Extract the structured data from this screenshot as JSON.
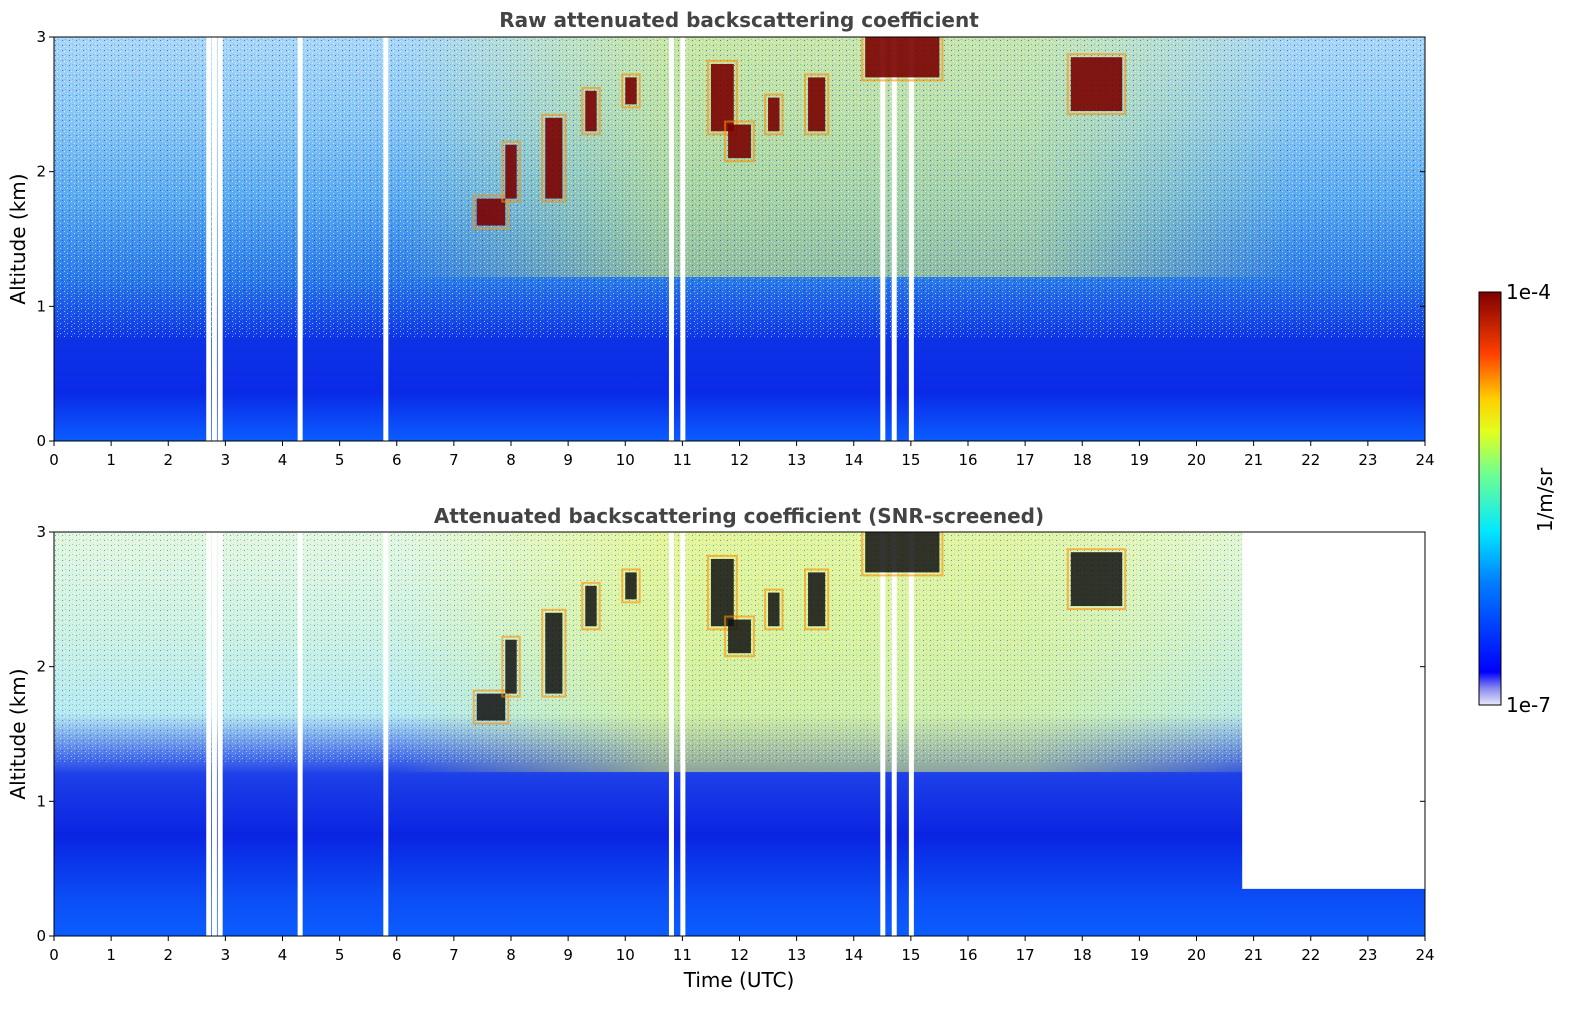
{
  "chart_data": [
    {
      "type": "heatmap",
      "title": "Raw attenuated backscattering coefficient",
      "xlabel": "",
      "ylabel": "Altitude (km)",
      "xlim": [
        0,
        24
      ],
      "ylim": [
        0,
        3
      ],
      "x_ticks": [
        "0",
        "1",
        "2",
        "3",
        "4",
        "5",
        "6",
        "7",
        "8",
        "9",
        "10",
        "11",
        "12",
        "13",
        "14",
        "15",
        "16",
        "17",
        "18",
        "19",
        "20",
        "21",
        "22",
        "23",
        "24"
      ],
      "y_ticks": [
        "0",
        "1",
        "2",
        "3"
      ],
      "cloud_layers": [
        {
          "t0": 7.4,
          "t1": 7.9,
          "z0": 1.6,
          "z1": 1.8
        },
        {
          "t0": 7.9,
          "t1": 8.1,
          "z0": 1.8,
          "z1": 2.2
        },
        {
          "t0": 8.6,
          "t1": 8.9,
          "z0": 1.8,
          "z1": 2.4
        },
        {
          "t0": 9.3,
          "t1": 9.5,
          "z0": 2.3,
          "z1": 2.6
        },
        {
          "t0": 10.0,
          "t1": 10.2,
          "z0": 2.5,
          "z1": 2.7
        },
        {
          "t0": 11.5,
          "t1": 11.9,
          "z0": 2.3,
          "z1": 2.8
        },
        {
          "t0": 11.8,
          "t1": 12.2,
          "z0": 2.1,
          "z1": 2.35
        },
        {
          "t0": 12.5,
          "t1": 12.7,
          "z0": 2.3,
          "z1": 2.55
        },
        {
          "t0": 13.2,
          "t1": 13.5,
          "z0": 2.3,
          "z1": 2.7
        },
        {
          "t0": 14.2,
          "t1": 15.5,
          "z0": 2.7,
          "z1": 3.0
        },
        {
          "t0": 17.8,
          "t1": 18.7,
          "z0": 2.45,
          "z1": 2.85
        }
      ],
      "data_gaps": [
        2.7,
        2.8,
        2.9,
        4.3,
        5.8,
        10.8,
        11.0,
        14.5,
        14.7,
        15.0
      ]
    },
    {
      "type": "heatmap",
      "title": "Attenuated backscattering coefficient (SNR-screened)",
      "xlabel": "Time (UTC)",
      "ylabel": "Altitude (km)",
      "xlim": [
        0,
        24
      ],
      "ylim": [
        0,
        3
      ],
      "x_ticks": [
        "0",
        "1",
        "2",
        "3",
        "4",
        "5",
        "6",
        "7",
        "8",
        "9",
        "10",
        "11",
        "12",
        "13",
        "14",
        "15",
        "16",
        "17",
        "18",
        "19",
        "20",
        "21",
        "22",
        "23",
        "24"
      ],
      "y_ticks": [
        "0",
        "1",
        "2",
        "3"
      ],
      "screened_top_after_20h_km": 0.35
    }
  ],
  "colorbar": {
    "label": "1/m/sr",
    "max_label": "1e-4",
    "min_label": "1e-7",
    "scale": "log",
    "colormap": "jet"
  },
  "colors": {
    "low": "#0a1fe6",
    "mid": "#1fa6ff",
    "high": "#f7e41e",
    "cloud": "#7a0000"
  }
}
